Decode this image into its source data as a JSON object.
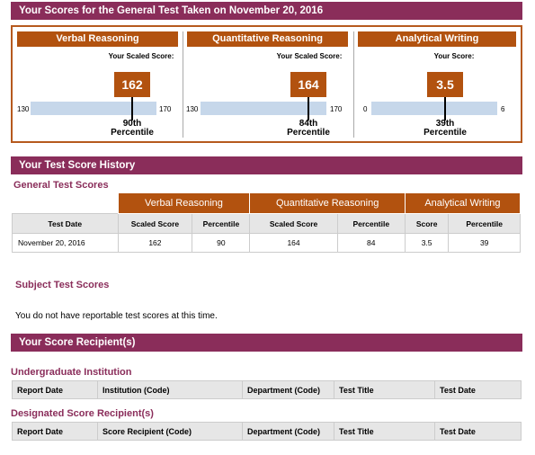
{
  "top_bar": {
    "title": "Your Scores for the General Test Taken on November 20, 2016"
  },
  "score_panels": [
    {
      "heading": "Verbal Reasoning",
      "label": "Your Scaled Score:",
      "score": "162",
      "min": "130",
      "max": "170",
      "percentile": "90th",
      "percentile_word": "Percentile",
      "score_value": 162,
      "range": [
        130,
        170
      ]
    },
    {
      "heading": "Quantitative Reasoning",
      "label": "Your Scaled Score:",
      "score": "164",
      "min": "130",
      "max": "170",
      "percentile": "84th",
      "percentile_word": "Percentile",
      "score_value": 164,
      "range": [
        130,
        170
      ]
    },
    {
      "heading": "Analytical Writing",
      "label": "Your Score:",
      "score": "3.5",
      "min": "0",
      "max": "6",
      "percentile": "39th",
      "percentile_word": "Percentile",
      "score_value": 3.5,
      "range": [
        0,
        6
      ]
    }
  ],
  "history_bar": {
    "title": "Your Test Score History"
  },
  "general": {
    "title": "General Test Scores",
    "groups": [
      "Verbal Reasoning",
      "Quantitative Reasoning",
      "Analytical Writing"
    ],
    "columns": [
      "Test Date",
      "Scaled Score",
      "Percentile",
      "Scaled Score",
      "Percentile",
      "Score",
      "Percentile"
    ],
    "rows": [
      [
        "November 20, 2016",
        "162",
        "90",
        "164",
        "84",
        "3.5",
        "39"
      ]
    ]
  },
  "subject": {
    "title": "Subject Test Scores",
    "message": "You do not have reportable test scores at this time."
  },
  "recipients_bar": {
    "title": "Your Score Recipient(s)"
  },
  "undergrad": {
    "title": "Undergraduate Institution",
    "columns": [
      "Report Date",
      "Institution (Code)",
      "Department (Code)",
      "Test Title",
      "Test Date"
    ]
  },
  "designated": {
    "title": "Designated Score Recipient(s)",
    "columns": [
      "Report Date",
      "Score Recipient (Code)",
      "Department (Code)",
      "Test Title",
      "Test Date"
    ]
  },
  "colors": {
    "bar": "#8a2d5a",
    "accent": "#b2520f",
    "track": "#c6d7ea"
  }
}
